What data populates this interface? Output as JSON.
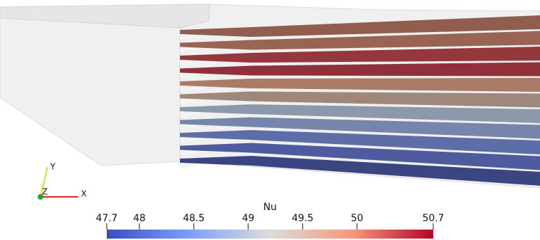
{
  "colorbar": {
    "title": "Nu",
    "range": [
      47.7,
      50.7
    ],
    "ticks": [
      47.7,
      48,
      48.5,
      49,
      49.5,
      50,
      50.7
    ]
  },
  "axes_labels": {
    "x": "X",
    "y": "Y",
    "z": "Z"
  }
}
